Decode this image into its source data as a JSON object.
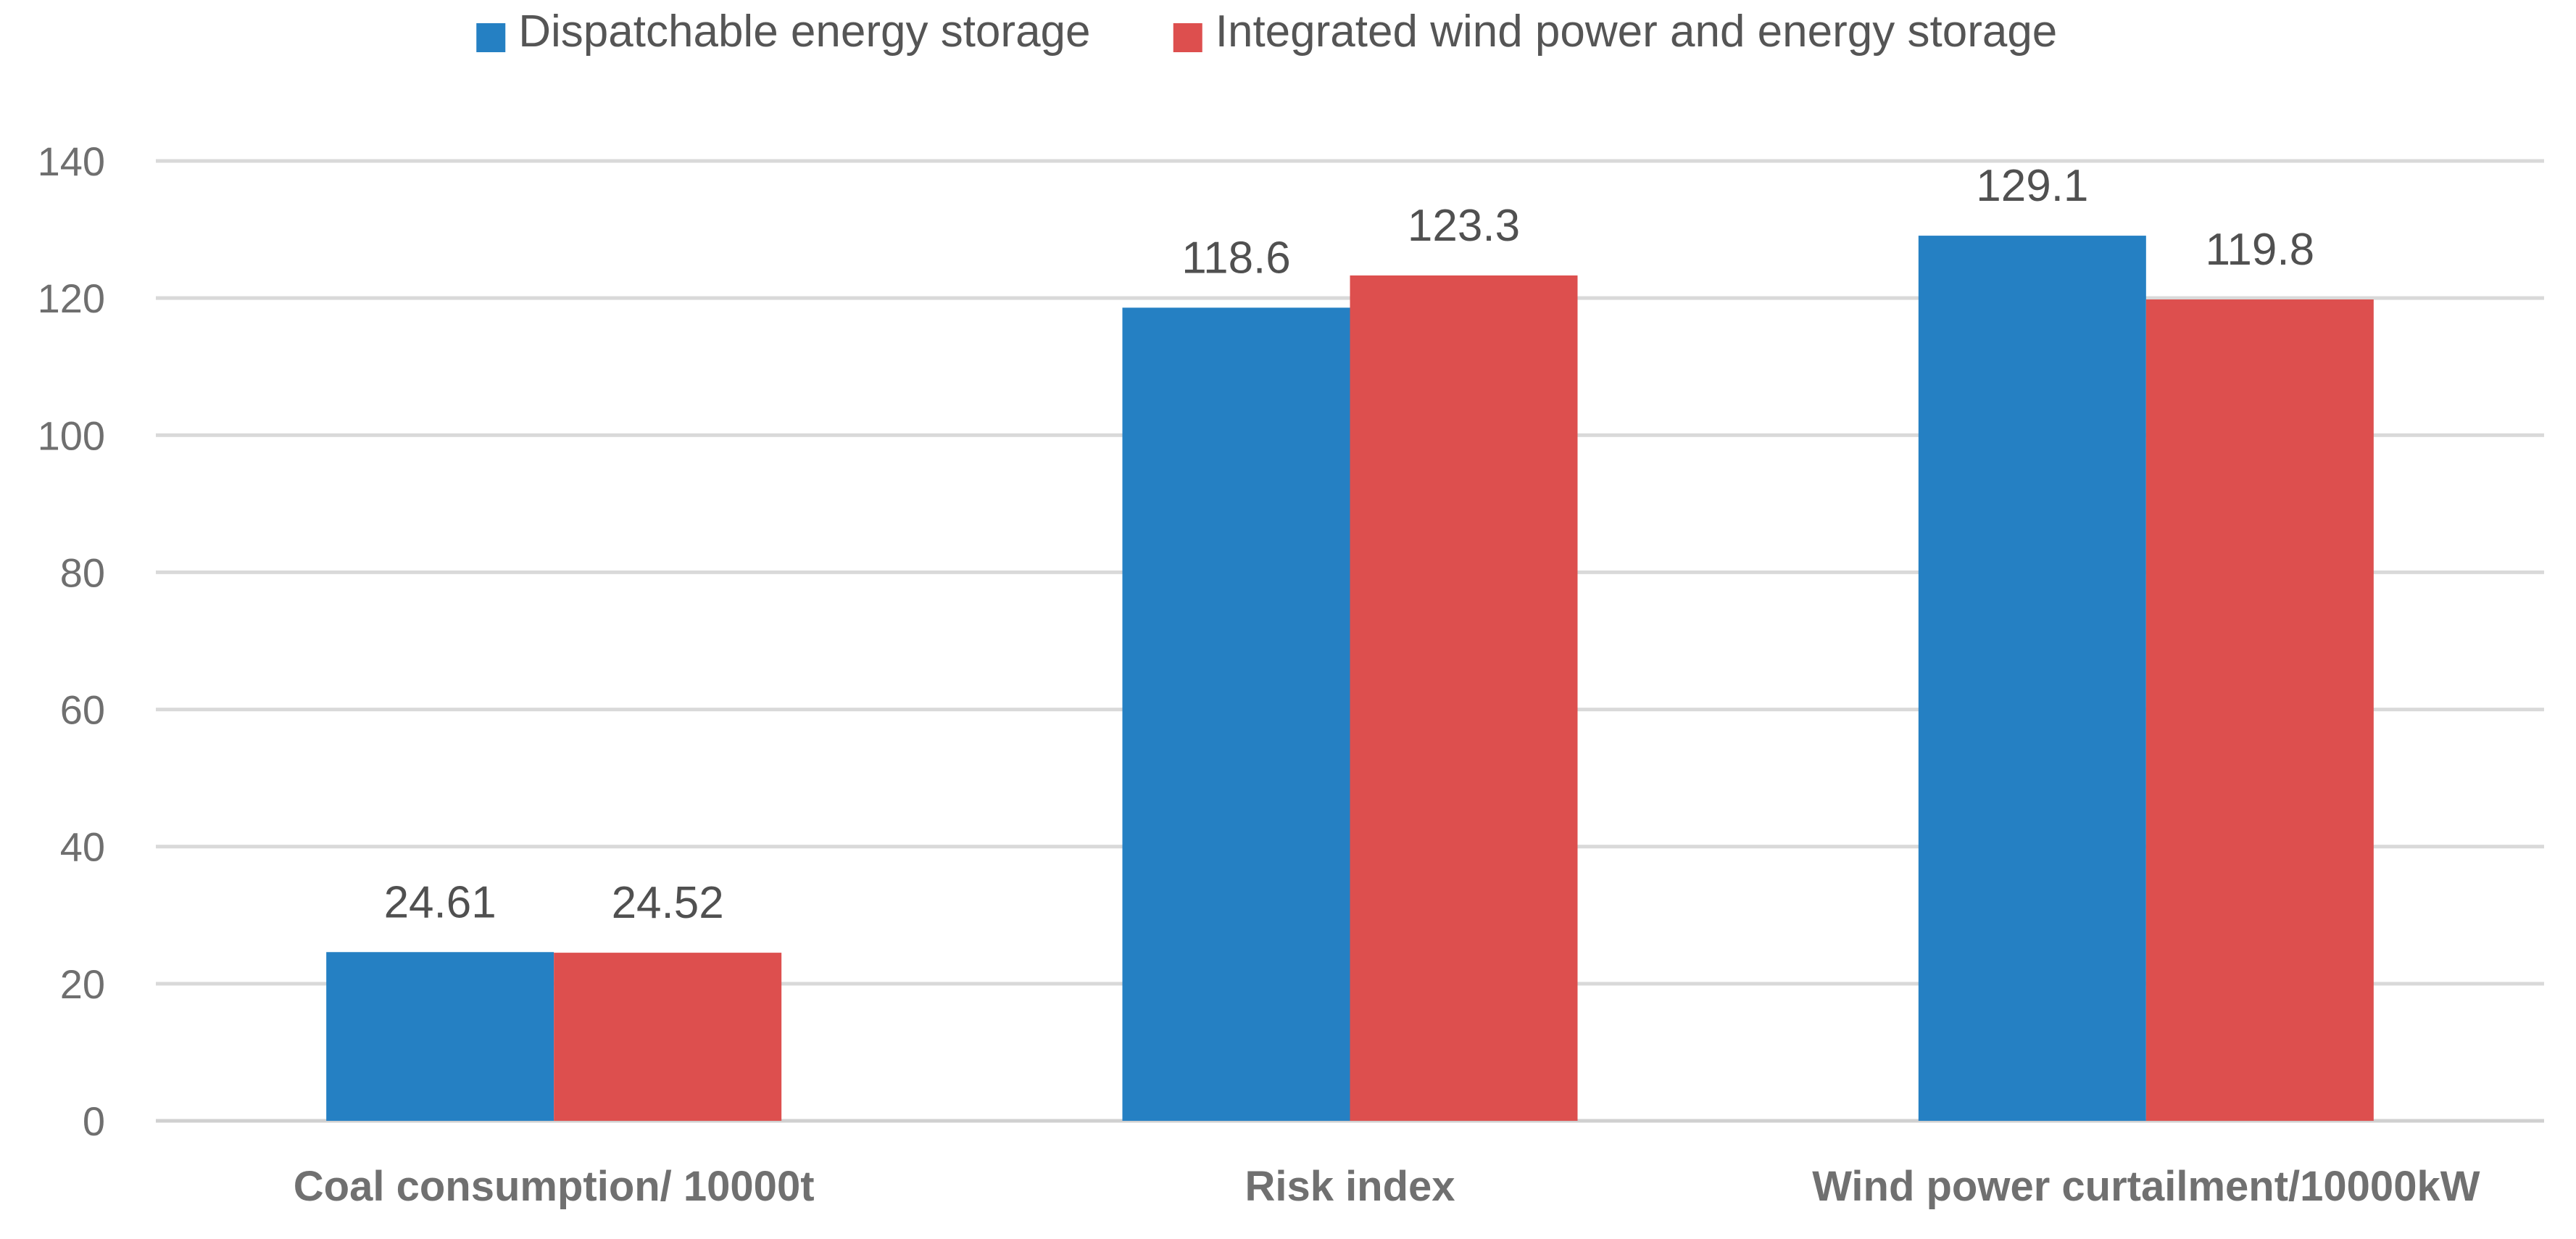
{
  "chart_data": {
    "type": "bar",
    "title": "",
    "xlabel": "",
    "ylabel": "",
    "ylim": [
      0,
      140
    ],
    "yticks": [
      0,
      20,
      40,
      60,
      80,
      100,
      120,
      140
    ],
    "grid": true,
    "legend_position": "top",
    "categories": [
      "Coal consumption/ 10000t",
      "Risk index",
      "Wind power curtailment/10000kW"
    ],
    "series": [
      {
        "name": "Dispatchable energy storage",
        "color": "#2580c3",
        "values": [
          24.61,
          118.6,
          129.1
        ],
        "labels": [
          "24.61",
          "118.6",
          "129.1"
        ]
      },
      {
        "name": "Integrated wind power and energy storage",
        "color": "#dd4f4e",
        "values": [
          24.52,
          123.3,
          119.8
        ],
        "labels": [
          "24.52",
          "123.3",
          "119.8"
        ]
      }
    ]
  }
}
